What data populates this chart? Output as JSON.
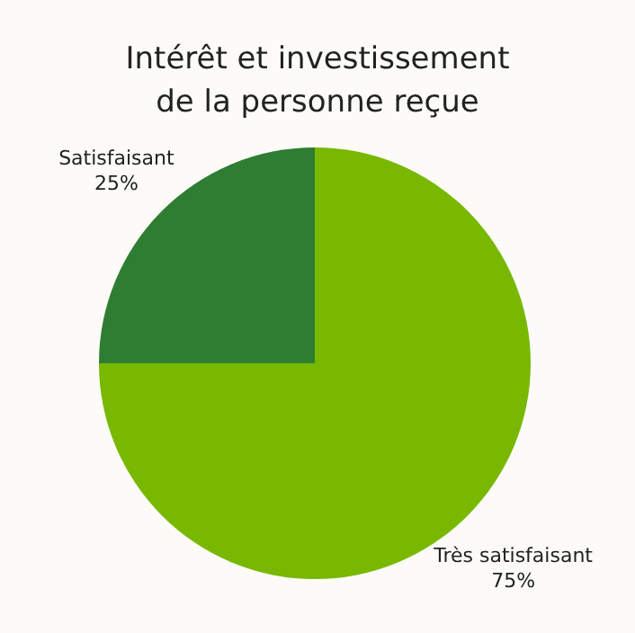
{
  "chart_data": {
    "type": "pie",
    "title": "Intérêt et investissement\nde la personne reçue",
    "categories": [
      "Très satisfaisant",
      "Satisfaisant"
    ],
    "values": [
      75,
      25
    ],
    "value_labels": [
      "75%",
      "25%"
    ],
    "colors": [
      "#78b800",
      "#2f7d32"
    ],
    "legend": false
  }
}
